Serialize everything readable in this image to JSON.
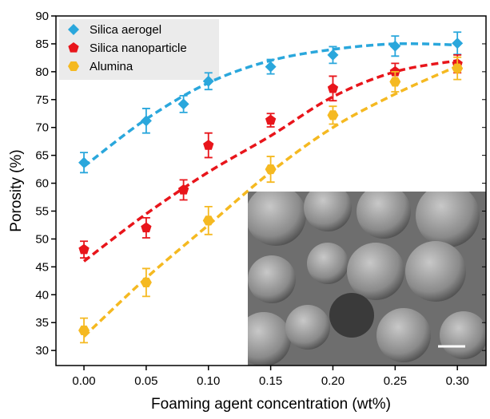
{
  "chart_data": {
    "type": "scatter",
    "x_label": "Foaming agent concentration (wt%)",
    "y_label": "Porosity (%)",
    "xlim": [
      -0.0225,
      0.323
    ],
    "ylim": [
      27.3,
      90
    ],
    "xticks": [
      {
        "value": 0,
        "label": "0.00"
      },
      {
        "value": 0.05,
        "label": "0.05"
      },
      {
        "value": 0.1,
        "label": "0.10"
      },
      {
        "value": 0.15,
        "label": "0.15"
      },
      {
        "value": 0.2,
        "label": "0.20"
      },
      {
        "value": 0.25,
        "label": "0.25"
      },
      {
        "value": 0.3,
        "label": "0.30"
      }
    ],
    "yticks": [
      30,
      35,
      40,
      45,
      50,
      55,
      60,
      65,
      70,
      75,
      80,
      85,
      90
    ],
    "legend": "upper left",
    "series": [
      {
        "name": "Silica aerogel",
        "color": "#2aa7dc",
        "marker": "diamond",
        "x": [
          0,
          0.05,
          0.08,
          0.1,
          0.15,
          0.2,
          0.25,
          0.3
        ],
        "values": [
          63.7,
          71.2,
          74.2,
          78.3,
          80.9,
          83,
          84.6,
          85.1
        ],
        "errors": [
          1.8,
          2.2,
          1.5,
          1.5,
          1.3,
          1.5,
          1.8,
          2.0
        ],
        "fit": {
          "x": [
            0,
            0.05,
            0.1,
            0.15,
            0.2,
            0.25,
            0.3
          ],
          "values": [
            63,
            71.5,
            78,
            82,
            84,
            85,
            84.8
          ]
        }
      },
      {
        "name": "Silica nanoparticle",
        "color": "#e8151b",
        "marker": "pentagon",
        "x": [
          0,
          0.05,
          0.08,
          0.1,
          0.15,
          0.2,
          0.25,
          0.3
        ],
        "values": [
          48.1,
          52,
          58.8,
          66.8,
          71.3,
          77,
          80,
          81.4
        ],
        "errors": [
          1.5,
          1.8,
          1.8,
          2.2,
          1.2,
          2.2,
          1.5,
          1.6
        ],
        "fit": {
          "x": [
            0,
            0.05,
            0.1,
            0.15,
            0.2,
            0.25,
            0.3
          ],
          "values": [
            46,
            54.5,
            62,
            68.5,
            75.5,
            80,
            82
          ]
        }
      },
      {
        "name": "Alumina",
        "color": "#f5b921",
        "marker": "hexagon",
        "x": [
          0,
          0.05,
          0.1,
          0.15,
          0.2,
          0.25,
          0.3
        ],
        "values": [
          33.6,
          42.2,
          53.3,
          62.5,
          72.2,
          78.2,
          80.6
        ],
        "errors": [
          2.2,
          2.5,
          2.5,
          2.3,
          1.6,
          1.8,
          2.0
        ],
        "fit": {
          "x": [
            0,
            0.05,
            0.1,
            0.15,
            0.2,
            0.25,
            0.3
          ],
          "values": [
            32.5,
            43,
            52.5,
            62,
            70,
            76,
            81
          ]
        }
      }
    ]
  }
}
